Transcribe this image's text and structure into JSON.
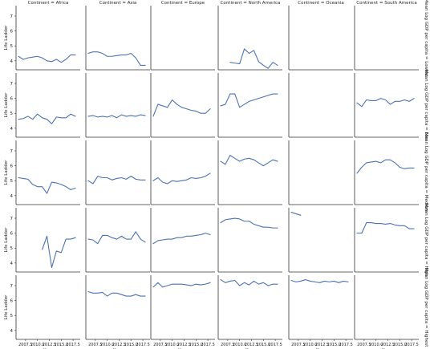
{
  "chart_data": {
    "type": "line",
    "col_titles": [
      "Continent = Africa",
      "Continent = Asia",
      "Continent = Europe",
      "Continent = North America",
      "Continent = Oceania",
      "Continent = South America"
    ],
    "row_titles": [
      "Mean Log GDP per capita = Lowest",
      "Mean Log GDP per capita = Low",
      "Mean Log GDP per capita = Medium",
      "Mean Log GDP per capita = High",
      "Mean Log GDP per capita = Highest"
    ],
    "xlabel": "Year",
    "ylabel": "Life Ladder",
    "x_ticks": [
      2007.5,
      2010.0,
      2012.5,
      2015.0,
      2017.5
    ],
    "x_tick_labels": [
      "2007.5",
      "2010.0",
      "2012.5",
      "2015.0",
      "2017.5"
    ],
    "xlim": [
      2005.5,
      2019
    ],
    "y_ticks": [
      4,
      5,
      6,
      7
    ],
    "y_tick_labels": [
      "4",
      "5",
      "6",
      "7"
    ],
    "ylim": [
      3.4,
      7.7
    ],
    "series_color": "#4c72b0",
    "panels": [
      {
        "row": 0,
        "col": 0,
        "x": [
          2006,
          2007,
          2008,
          2009,
          2010,
          2011,
          2012,
          2013,
          2014,
          2015,
          2016,
          2017,
          2018
        ],
        "y": [
          4.3,
          4.1,
          4.2,
          4.25,
          4.3,
          4.2,
          4.0,
          3.95,
          4.1,
          3.9,
          4.1,
          4.4,
          4.4
        ]
      },
      {
        "row": 0,
        "col": 1,
        "x": [
          2006,
          2007,
          2008,
          2009,
          2010,
          2011,
          2012,
          2013,
          2014,
          2015,
          2016,
          2017,
          2018
        ],
        "y": [
          4.5,
          4.6,
          4.6,
          4.5,
          4.3,
          4.3,
          4.35,
          4.4,
          4.4,
          4.5,
          4.2,
          3.7,
          3.7
        ]
      },
      {
        "row": 0,
        "col": 3,
        "x": [
          2008,
          2009,
          2010,
          2011,
          2012,
          2013,
          2014,
          2015,
          2016,
          2017,
          2018
        ],
        "y": [
          3.9,
          3.85,
          3.8,
          4.8,
          4.5,
          4.7,
          3.95,
          3.7,
          3.5,
          3.9,
          3.7
        ]
      },
      {
        "row": 1,
        "col": 0,
        "x": [
          2006,
          2007,
          2008,
          2009,
          2010,
          2011,
          2012,
          2013,
          2014,
          2015,
          2016,
          2017,
          2018
        ],
        "y": [
          4.6,
          4.65,
          4.8,
          4.6,
          4.95,
          4.7,
          4.6,
          4.3,
          4.75,
          4.7,
          4.7,
          4.95,
          4.8
        ]
      },
      {
        "row": 1,
        "col": 1,
        "x": [
          2006,
          2007,
          2008,
          2009,
          2010,
          2011,
          2012,
          2013,
          2014,
          2015,
          2016,
          2017,
          2018
        ],
        "y": [
          4.8,
          4.85,
          4.75,
          4.8,
          4.75,
          4.85,
          4.7,
          4.9,
          4.8,
          4.85,
          4.8,
          4.9,
          4.85
        ]
      },
      {
        "row": 1,
        "col": 2,
        "x": [
          2006,
          2007,
          2008,
          2009,
          2010,
          2011,
          2012,
          2013,
          2014,
          2015,
          2016,
          2017,
          2018
        ],
        "y": [
          4.8,
          5.6,
          5.5,
          5.4,
          5.9,
          5.6,
          5.4,
          5.3,
          5.2,
          5.15,
          5.0,
          5.0,
          5.3
        ]
      },
      {
        "row": 1,
        "col": 3,
        "x": [
          2006,
          2007,
          2008,
          2009,
          2010,
          2011,
          2012,
          2013,
          2014,
          2015,
          2016,
          2017,
          2018
        ],
        "y": [
          5.5,
          5.6,
          6.3,
          6.3,
          5.4,
          5.6,
          5.8,
          5.9,
          6.0,
          6.1,
          6.2,
          6.3,
          6.3
        ]
      },
      {
        "row": 1,
        "col": 5,
        "x": [
          2006,
          2007,
          2008,
          2009,
          2010,
          2011,
          2012,
          2013,
          2014,
          2015,
          2016,
          2017,
          2018
        ],
        "y": [
          5.7,
          5.45,
          5.9,
          5.85,
          5.85,
          6.0,
          5.9,
          5.6,
          5.8,
          5.8,
          5.9,
          5.8,
          6.0
        ]
      },
      {
        "row": 2,
        "col": 0,
        "x": [
          2006,
          2007,
          2008,
          2009,
          2010,
          2011,
          2012,
          2013,
          2014,
          2015,
          2016,
          2017,
          2018
        ],
        "y": [
          5.2,
          5.15,
          5.1,
          4.75,
          4.6,
          4.6,
          4.15,
          4.9,
          4.85,
          4.75,
          4.6,
          4.4,
          4.5
        ]
      },
      {
        "row": 2,
        "col": 1,
        "x": [
          2006,
          2007,
          2008,
          2009,
          2010,
          2011,
          2012,
          2013,
          2014,
          2015,
          2016,
          2017,
          2018
        ],
        "y": [
          5.0,
          4.8,
          5.3,
          5.2,
          5.2,
          5.05,
          5.15,
          5.2,
          5.1,
          5.3,
          5.1,
          5.05,
          5.05
        ]
      },
      {
        "row": 2,
        "col": 2,
        "x": [
          2006,
          2007,
          2008,
          2009,
          2010,
          2011,
          2012,
          2013,
          2014,
          2015,
          2016,
          2017,
          2018
        ],
        "y": [
          5.0,
          5.2,
          4.9,
          4.8,
          5.0,
          4.95,
          5.0,
          5.05,
          5.2,
          5.15,
          5.2,
          5.3,
          5.5
        ]
      },
      {
        "row": 2,
        "col": 3,
        "x": [
          2006,
          2007,
          2008,
          2009,
          2010,
          2011,
          2012,
          2013,
          2014,
          2015,
          2016,
          2017,
          2018
        ],
        "y": [
          6.3,
          6.1,
          6.7,
          6.5,
          6.3,
          6.45,
          6.5,
          6.4,
          6.2,
          6.0,
          6.2,
          6.4,
          6.3
        ]
      },
      {
        "row": 2,
        "col": 5,
        "x": [
          2006,
          2007,
          2008,
          2009,
          2010,
          2011,
          2012,
          2013,
          2014,
          2015,
          2016,
          2017,
          2018
        ],
        "y": [
          5.5,
          5.9,
          6.2,
          6.25,
          6.3,
          6.2,
          6.4,
          6.4,
          6.2,
          5.9,
          5.8,
          5.85,
          5.85
        ]
      },
      {
        "row": 3,
        "col": 0,
        "x": [
          2011,
          2012,
          2013,
          2014,
          2015,
          2016,
          2017,
          2018
        ],
        "y": [
          4.9,
          5.8,
          3.7,
          4.8,
          4.7,
          5.6,
          5.6,
          5.7
        ]
      },
      {
        "row": 3,
        "col": 1,
        "x": [
          2006,
          2007,
          2008,
          2009,
          2010,
          2011,
          2012,
          2013,
          2014,
          2015,
          2016,
          2017,
          2018
        ],
        "y": [
          5.6,
          5.55,
          5.3,
          5.85,
          5.85,
          5.7,
          5.6,
          5.8,
          5.6,
          5.6,
          6.1,
          5.6,
          5.4
        ]
      },
      {
        "row": 3,
        "col": 2,
        "x": [
          2006,
          2007,
          2008,
          2009,
          2010,
          2011,
          2012,
          2013,
          2014,
          2015,
          2016,
          2017,
          2018
        ],
        "y": [
          5.3,
          5.5,
          5.55,
          5.6,
          5.6,
          5.7,
          5.7,
          5.8,
          5.8,
          5.85,
          5.9,
          6.0,
          5.9
        ]
      },
      {
        "row": 3,
        "col": 3,
        "x": [
          2006,
          2007,
          2008,
          2009,
          2010,
          2011,
          2012,
          2013,
          2014,
          2015,
          2016,
          2017,
          2018
        ],
        "y": [
          6.7,
          6.9,
          6.95,
          7.0,
          6.95,
          6.8,
          6.8,
          6.6,
          6.5,
          6.4,
          6.4,
          6.35,
          6.35
        ]
      },
      {
        "row": 3,
        "col": 4,
        "x": [
          2006,
          2007,
          2008
        ],
        "y": [
          7.4,
          7.3,
          7.2
        ]
      },
      {
        "row": 3,
        "col": 5,
        "x": [
          2006,
          2007,
          2008,
          2009,
          2010,
          2011,
          2012,
          2013,
          2014,
          2015,
          2016,
          2017,
          2018
        ],
        "y": [
          6.0,
          6.0,
          6.7,
          6.7,
          6.65,
          6.65,
          6.6,
          6.65,
          6.55,
          6.5,
          6.5,
          6.3,
          6.3
        ]
      },
      {
        "row": 4,
        "col": 1,
        "x": [
          2006,
          2007,
          2008,
          2009,
          2010,
          2011,
          2012,
          2013,
          2014,
          2015,
          2016,
          2017,
          2018
        ],
        "y": [
          6.6,
          6.5,
          6.5,
          6.55,
          6.3,
          6.5,
          6.5,
          6.4,
          6.3,
          6.3,
          6.4,
          6.3,
          6.3
        ]
      },
      {
        "row": 4,
        "col": 2,
        "x": [
          2006,
          2007,
          2008,
          2009,
          2010,
          2011,
          2012,
          2013,
          2014,
          2015,
          2016,
          2017,
          2018
        ],
        "y": [
          6.9,
          7.2,
          6.9,
          7.0,
          7.1,
          7.1,
          7.1,
          7.05,
          7.0,
          7.1,
          7.05,
          7.1,
          7.2
        ]
      },
      {
        "row": 4,
        "col": 3,
        "x": [
          2006,
          2007,
          2008,
          2009,
          2010,
          2011,
          2012,
          2013,
          2014,
          2015,
          2016,
          2017,
          2018
        ],
        "y": [
          7.4,
          7.2,
          7.3,
          7.35,
          7.0,
          7.2,
          7.05,
          7.3,
          7.1,
          7.2,
          7.0,
          7.1,
          7.1
        ]
      },
      {
        "row": 4,
        "col": 4,
        "x": [
          2006,
          2007,
          2008,
          2009,
          2010,
          2011,
          2012,
          2013,
          2014,
          2015,
          2016,
          2017,
          2018
        ],
        "y": [
          7.35,
          7.25,
          7.3,
          7.4,
          7.3,
          7.25,
          7.2,
          7.3,
          7.25,
          7.3,
          7.2,
          7.3,
          7.25
        ]
      }
    ]
  }
}
